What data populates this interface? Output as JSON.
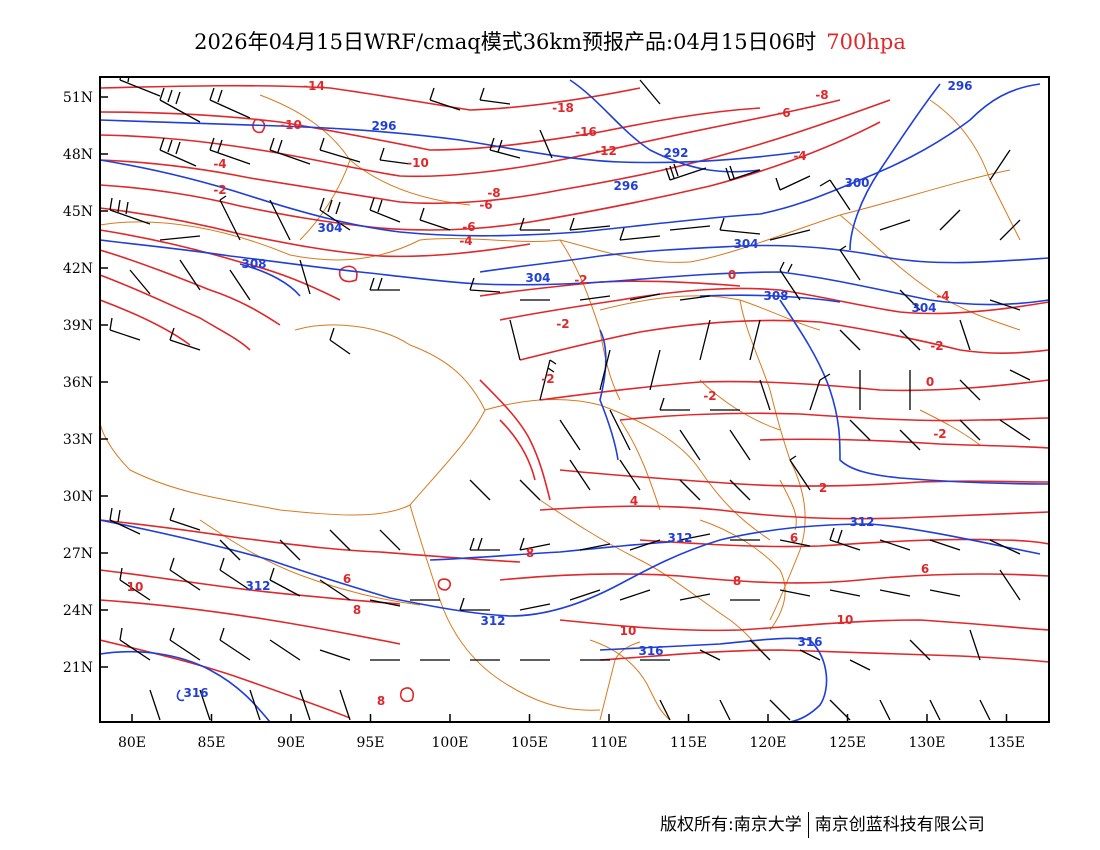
{
  "title": {
    "text": "2026年04月15日WRF/cmaq模式36km预报产品:04月15日06时",
    "level": "700hpa",
    "level_color": "#e0272a"
  },
  "axes": {
    "x_ticks": [
      "80E",
      "85E",
      "90E",
      "95E",
      "100E",
      "105E",
      "110E",
      "115E",
      "120E",
      "125E",
      "130E",
      "135E"
    ],
    "y_ticks": [
      "51N",
      "48N",
      "45N",
      "42N",
      "39N",
      "36N",
      "33N",
      "30N",
      "27N",
      "24N",
      "21N"
    ]
  },
  "colors": {
    "temperature": "#e0272a",
    "geopotential": "#1f3fd8",
    "border": "#d97a1e",
    "wind": "#000000"
  },
  "temperature_labels": [
    "-14",
    "-10",
    "-16",
    "-18",
    "-8",
    "-6",
    "-4",
    "-12",
    "-10",
    "-8",
    "-6",
    "-4",
    "-2",
    "-6",
    "-4",
    "-4",
    "-2",
    "-2",
    "-2",
    "0",
    "-2",
    "0",
    "-2",
    "-2",
    "2",
    "4",
    "6",
    "6",
    "8",
    "10",
    "10",
    "8",
    "6",
    "8",
    "8",
    "10"
  ],
  "geopotential_labels": [
    "296",
    "296",
    "292",
    "296",
    "304",
    "300",
    "308",
    "304",
    "304",
    "308",
    "304",
    "312",
    "312",
    "312",
    "316",
    "316",
    "316",
    "312"
  ],
  "footer": {
    "left": "版权所有:南京大学",
    "right": "南京创蓝科技有限公司"
  }
}
